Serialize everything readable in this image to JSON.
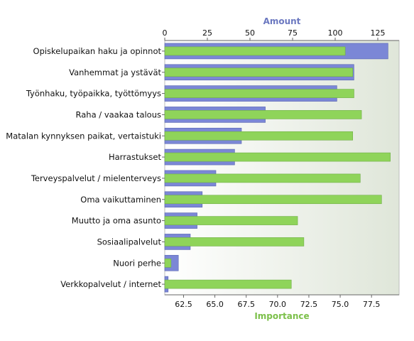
{
  "chart_data": {
    "type": "bar",
    "orientation": "horizontal",
    "categories": [
      "Opiskelupaikan haku ja opinnot",
      "Vanhemmat ja ystävät",
      "Työnhaku, työpaikka, työttömyys",
      "Raha / vaakaa talous",
      "Matalan kynnyksen paikat, vertaistuki",
      "Harrastukset",
      "Terveyspalvelut / mielenterveys",
      "Oma vaikuttaminen",
      "Muutto ja oma asunto",
      "Sosiaalipalvelut",
      "Nuori perhe",
      "Verkkopalvelut / internet"
    ],
    "series": [
      {
        "name": "Amount",
        "axis": "top",
        "color": "#7b87d6",
        "values": [
          131,
          111,
          101,
          59,
          45,
          41,
          30,
          22,
          19,
          15,
          8,
          2
        ]
      },
      {
        "name": "Importance",
        "axis": "bottom",
        "color": "#8fd45a",
        "values": [
          75.4,
          76.0,
          76.1,
          76.7,
          76.0,
          79.0,
          76.6,
          78.3,
          71.6,
          72.1,
          61.5,
          71.1
        ]
      }
    ],
    "top_axis": {
      "title": "Amount",
      "color": "#6b78c0",
      "min": 0,
      "max": 137.5,
      "ticks": [
        0,
        25,
        50,
        75,
        100,
        125
      ]
    },
    "bottom_axis": {
      "title": "Importance",
      "color": "#7cc04a",
      "min": 61,
      "max": 79.7,
      "ticks": [
        62.5,
        65.0,
        67.5,
        70.0,
        72.5,
        75.0,
        77.5
      ],
      "tick_labels": [
        "62.5",
        "65.0",
        "67.5",
        "70.0",
        "72.5",
        "75.0",
        "77.5"
      ]
    },
    "grid": false,
    "legend": "none"
  }
}
